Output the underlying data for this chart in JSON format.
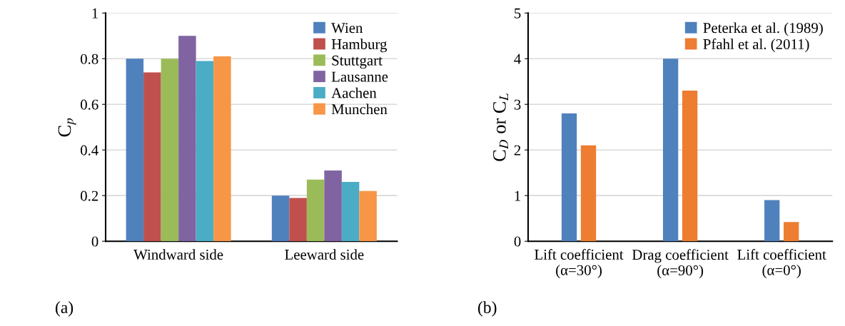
{
  "chart_data": [
    {
      "type": "bar",
      "ylabel": "C$_{p}$",
      "categories": [
        "Windward side",
        "Leeward side"
      ],
      "series": [
        {
          "name": "Wien",
          "color": "#4f81bd",
          "values": [
            0.8,
            0.2
          ]
        },
        {
          "name": "Hamburg",
          "color": "#c0504d",
          "values": [
            0.74,
            0.19
          ]
        },
        {
          "name": "Stuttgart",
          "color": "#9bbb59",
          "values": [
            0.8,
            0.27
          ]
        },
        {
          "name": "Lausanne",
          "color": "#8064a2",
          "values": [
            0.9,
            0.31
          ]
        },
        {
          "name": "Aachen",
          "color": "#4bacc6",
          "values": [
            0.79,
            0.26
          ]
        },
        {
          "name": "Munchen",
          "color": "#f79646",
          "values": [
            0.81,
            0.22
          ]
        }
      ],
      "ylim": [
        0,
        1
      ],
      "yticks": [
        0,
        0.2,
        0.4,
        0.6,
        0.8,
        1
      ],
      "grid": "y",
      "legend": "top right",
      "annotations": [
        "(a)"
      ]
    },
    {
      "type": "bar",
      "ylabel": "C$_{D}$ or C$_{L}$",
      "categories": [
        "Lift coefficient\n(α=30°)",
        "Drag coefficient\n(α=90°)",
        "Lift coefficient\n(α=0°)"
      ],
      "series": [
        {
          "name": "Peterka et al. (1989)",
          "color": "#4f81bd",
          "values": [
            2.8,
            4.0,
            0.9
          ]
        },
        {
          "name": "Pfahl et al. (2011)",
          "color": "#ed7d31",
          "values": [
            2.1,
            3.3,
            0.42
          ]
        }
      ],
      "ylim": [
        0,
        5
      ],
      "yticks": [
        0,
        1,
        2,
        3,
        4,
        5
      ],
      "grid": "y",
      "legend": "top right",
      "annotations": [
        "(b)"
      ]
    }
  ]
}
